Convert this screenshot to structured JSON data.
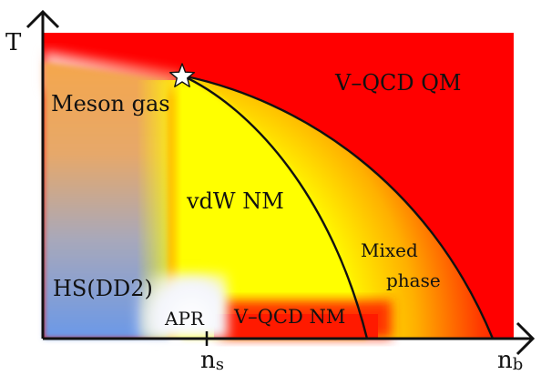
{
  "axes": {
    "y_label": "T",
    "x_label": "n",
    "x_label_sub": "b",
    "tick_label": "n",
    "tick_label_sub": "s"
  },
  "regions": {
    "meson_gas": "Meson gas",
    "qcd_qm": "V–QCD QM",
    "vdw_nm": "vdW NM",
    "mixed_1": "Mixed",
    "mixed_2": "phase",
    "hs_dd2": "HS(DD2)",
    "apr": "APR",
    "qcd_nm": "V–QCD NM"
  },
  "markers": {
    "critical_point": "star-icon"
  },
  "colors": {
    "quark_matter": "#ff0000",
    "nuclear_vdw": "#ffff00",
    "meson_gas": "#f2a85a",
    "hadronic": "#6f9be8",
    "apr": "#ffffff",
    "phase_boundary": "#111111"
  }
}
